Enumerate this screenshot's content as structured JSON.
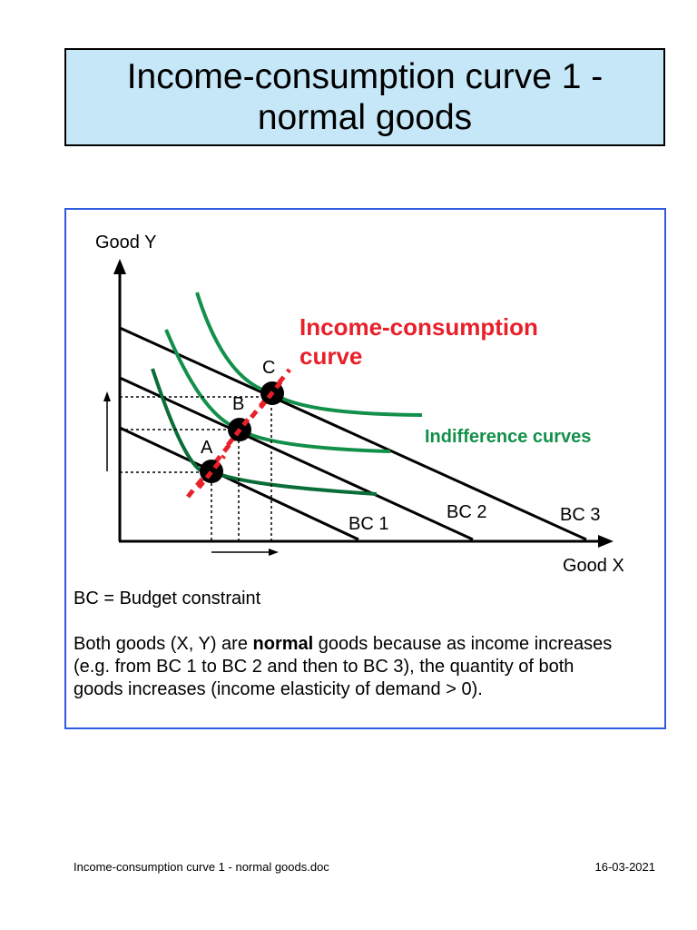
{
  "title": "Income-consumption curve 1 -\nnormal goods",
  "diagram": {
    "y_axis_label": "Good Y",
    "x_axis_label": "Good X",
    "icc_label_line1": "Income-consumption",
    "icc_label_line2": "curve",
    "indifference_label": "Indifference curves",
    "point_labels": [
      "A",
      "B",
      "C"
    ],
    "bc_labels": [
      "BC 1",
      "BC 2",
      "BC 3"
    ],
    "colors": {
      "icc": "#e8202a",
      "indifference": "#12904a",
      "indifference_dark": "#0b6e38",
      "axis": "#000000",
      "border": "#2e5be0",
      "title_bg": "#c6e7f7"
    }
  },
  "caption": {
    "definition": "BC = Budget constraint",
    "text_before": "Both goods (X, Y) are ",
    "text_bold": "normal",
    "text_after": " goods because as income increases (e.g. from BC 1 to BC 2 and then to BC 3), the quantity of both goods increases (income elasticity of demand > 0)."
  },
  "footer": {
    "filename": "Income-consumption curve 1 - normal goods.doc",
    "date": "16-03-2021"
  }
}
